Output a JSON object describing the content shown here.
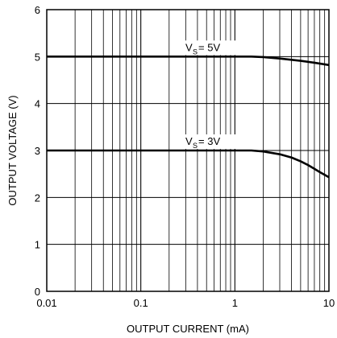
{
  "chart_data": {
    "type": "line",
    "title": "",
    "xlabel": "OUTPUT CURRENT (mA)",
    "ylabel": "OUTPUT VOLTAGE (V)",
    "xscale": "log",
    "xlim": [
      0.01,
      10
    ],
    "ylim": [
      0,
      6
    ],
    "grid": true,
    "xtick_labels": [
      "0.01",
      "0.1",
      "1",
      "10"
    ],
    "ytick_labels": [
      "0",
      "1",
      "2",
      "3",
      "4",
      "5",
      "6"
    ],
    "series": [
      {
        "label_main": "V",
        "label_sub": "S",
        "label_rest": " = 5V",
        "x": [
          0.01,
          0.1,
          1,
          1.5,
          2,
          3,
          5,
          7,
          10
        ],
        "y": [
          5.0,
          5.0,
          5.0,
          5.0,
          4.99,
          4.96,
          4.91,
          4.87,
          4.82
        ]
      },
      {
        "label_main": "V",
        "label_sub": "S",
        "label_rest": " = 3V",
        "x": [
          0.01,
          0.1,
          1,
          1.5,
          2,
          3,
          4,
          5,
          6,
          7,
          8,
          10
        ],
        "y": [
          3.0,
          3.0,
          3.0,
          3.0,
          2.98,
          2.92,
          2.85,
          2.77,
          2.69,
          2.61,
          2.54,
          2.43
        ]
      }
    ]
  }
}
